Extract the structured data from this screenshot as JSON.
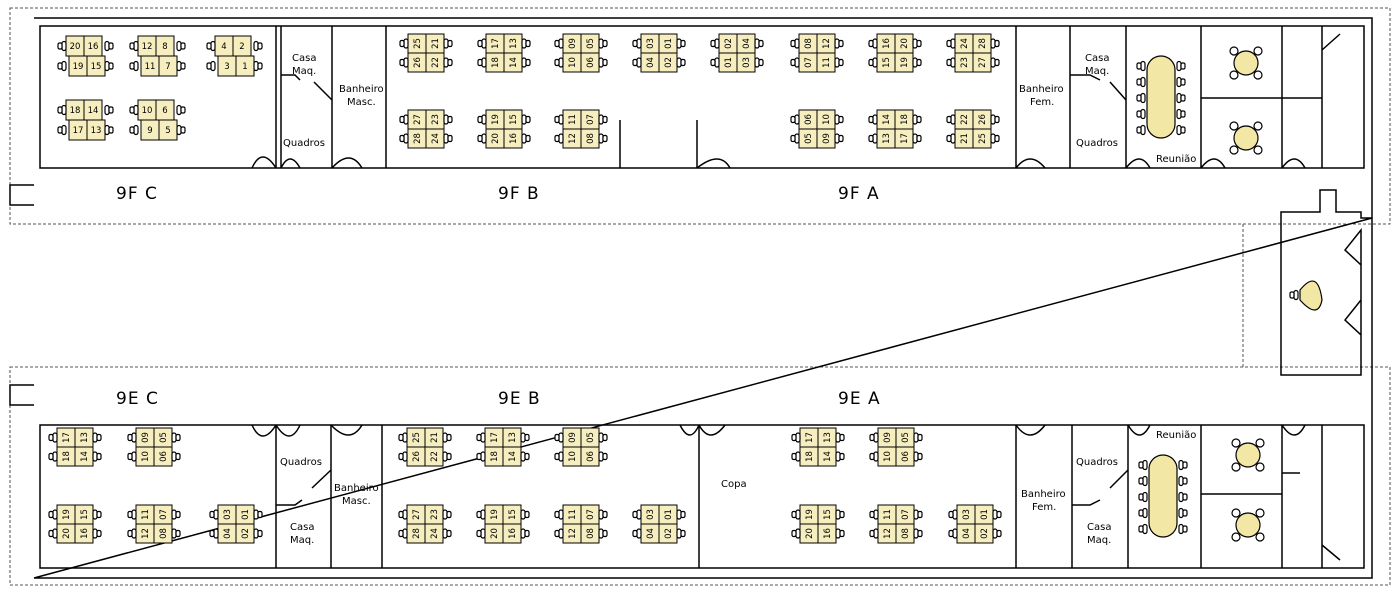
{
  "zones": {
    "f_c": "9F  C",
    "f_b": "9F  B",
    "f_a": "9F  A",
    "e_c": "9E  C",
    "e_b": "9E  B",
    "e_a": "9E  A"
  },
  "rooms": {
    "casa_maq": [
      "Casa",
      "Maq."
    ],
    "banheiro_masc": [
      "Banheiro",
      "Masc."
    ],
    "banheiro_fem": [
      "Banheiro",
      "Fem."
    ],
    "quadros": "Quadros",
    "reuniao": "Reunião",
    "copa": "Copa"
  },
  "colors": {
    "desk_fill": "#f6eebf",
    "table_fill": "#f3e7a6",
    "wall": "#000000",
    "dashed_zone": "#555555"
  },
  "desk_blocks": {
    "row_a": [
      [
        "25",
        "21"
      ],
      [
        "26",
        "22"
      ],
      [
        "17",
        "13"
      ],
      [
        "18",
        "14"
      ],
      [
        "09",
        "05"
      ],
      [
        "10",
        "06"
      ],
      [
        "03",
        "01"
      ],
      [
        "04",
        "02"
      ]
    ],
    "row_b": [
      [
        "27",
        "23"
      ],
      [
        "28",
        "24"
      ],
      [
        "19",
        "15"
      ],
      [
        "20",
        "16"
      ],
      [
        "11",
        "07"
      ],
      [
        "12",
        "08"
      ]
    ],
    "row_a_f_a": [
      [
        "02",
        "04"
      ],
      [
        "01",
        "03"
      ],
      [
        "08",
        "12"
      ],
      [
        "07",
        "11"
      ],
      [
        "16",
        "20"
      ],
      [
        "15",
        "19"
      ],
      [
        "24",
        "28"
      ],
      [
        "23",
        "27"
      ]
    ],
    "row_b_f_a": [
      [
        "06",
        "10"
      ],
      [
        "05",
        "09"
      ],
      [
        "14",
        "18"
      ],
      [
        "13",
        "17"
      ],
      [
        "22",
        "26"
      ],
      [
        "21",
        "25"
      ]
    ],
    "e_c_top": [
      [
        "17",
        "13"
      ],
      [
        "18",
        "14"
      ],
      [
        "09",
        "05"
      ],
      [
        "10",
        "06"
      ]
    ],
    "e_c_bot": [
      [
        "19",
        "15"
      ],
      [
        "20",
        "16"
      ],
      [
        "11",
        "07"
      ],
      [
        "12",
        "08"
      ],
      [
        "03",
        "01"
      ],
      [
        "04",
        "02"
      ]
    ],
    "e_a_top": [
      [
        "17",
        "13"
      ],
      [
        "18",
        "14"
      ],
      [
        "09",
        "05"
      ],
      [
        "10",
        "06"
      ]
    ],
    "e_a_bot": [
      [
        "19",
        "15"
      ],
      [
        "20",
        "16"
      ],
      [
        "11",
        "07"
      ],
      [
        "12",
        "08"
      ],
      [
        "03",
        "01"
      ],
      [
        "04",
        "02"
      ]
    ]
  },
  "f_c_clusters": [
    {
      "cells": [
        [
          "20",
          "16"
        ],
        [
          "19",
          "15"
        ]
      ]
    },
    {
      "cells": [
        [
          "12",
          "8"
        ],
        [
          "11",
          "7"
        ]
      ]
    },
    {
      "cells": [
        [
          "4",
          "2"
        ],
        [
          "3",
          "1"
        ]
      ]
    },
    {
      "cells": [
        [
          "18",
          "14"
        ],
        [
          "17",
          "13"
        ]
      ]
    },
    {
      "cells": [
        [
          "10",
          "6"
        ],
        [
          "9",
          "5"
        ]
      ]
    }
  ]
}
